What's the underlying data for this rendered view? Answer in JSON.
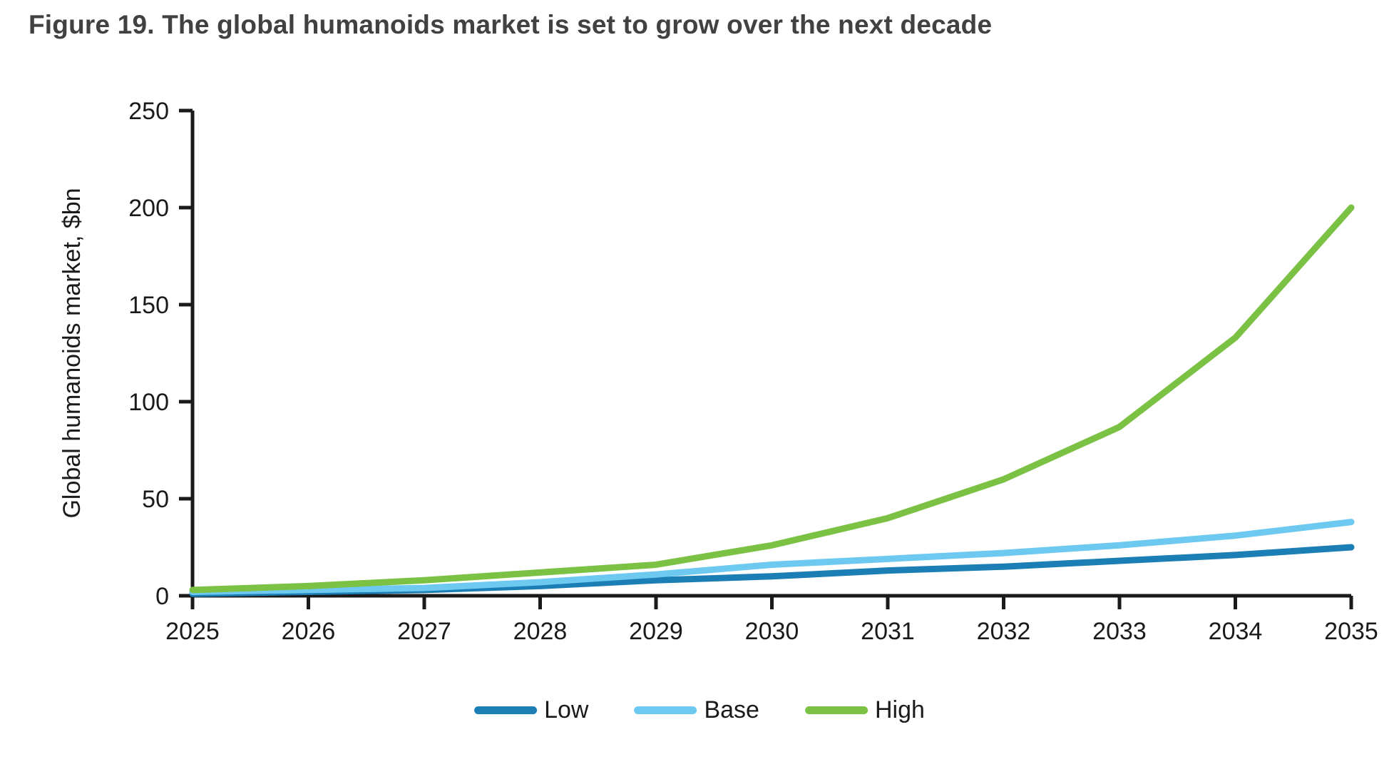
{
  "figure_title": "Figure 19. The global humanoids market is set to grow over the next decade",
  "chart_data": {
    "type": "line",
    "title": "Figure 19. The global humanoids market is set to grow over the next decade",
    "categories": [
      "2025",
      "2026",
      "2027",
      "2028",
      "2029",
      "2030",
      "2031",
      "2032",
      "2033",
      "2034",
      "2035"
    ],
    "series": [
      {
        "name": "Low",
        "color": "#1b7eb5",
        "values": [
          1,
          2,
          3,
          5,
          8,
          10,
          13,
          15,
          18,
          21,
          25
        ]
      },
      {
        "name": "Base",
        "color": "#6ec9f0",
        "values": [
          2,
          3,
          4,
          7,
          11,
          16,
          19,
          22,
          26,
          31,
          38
        ]
      },
      {
        "name": "High",
        "color": "#7bc144",
        "values": [
          3,
          5,
          8,
          12,
          16,
          26,
          40,
          60,
          87,
          133,
          200
        ]
      }
    ],
    "xlabel": "",
    "ylabel": "Global humanoids market, $bn",
    "ylim": [
      0,
      250
    ],
    "yticks": [
      0,
      50,
      100,
      150,
      200,
      250
    ],
    "grid": false,
    "legend_position": "bottom",
    "axis_color": "#1a1a1a",
    "title_color": "#414042"
  }
}
